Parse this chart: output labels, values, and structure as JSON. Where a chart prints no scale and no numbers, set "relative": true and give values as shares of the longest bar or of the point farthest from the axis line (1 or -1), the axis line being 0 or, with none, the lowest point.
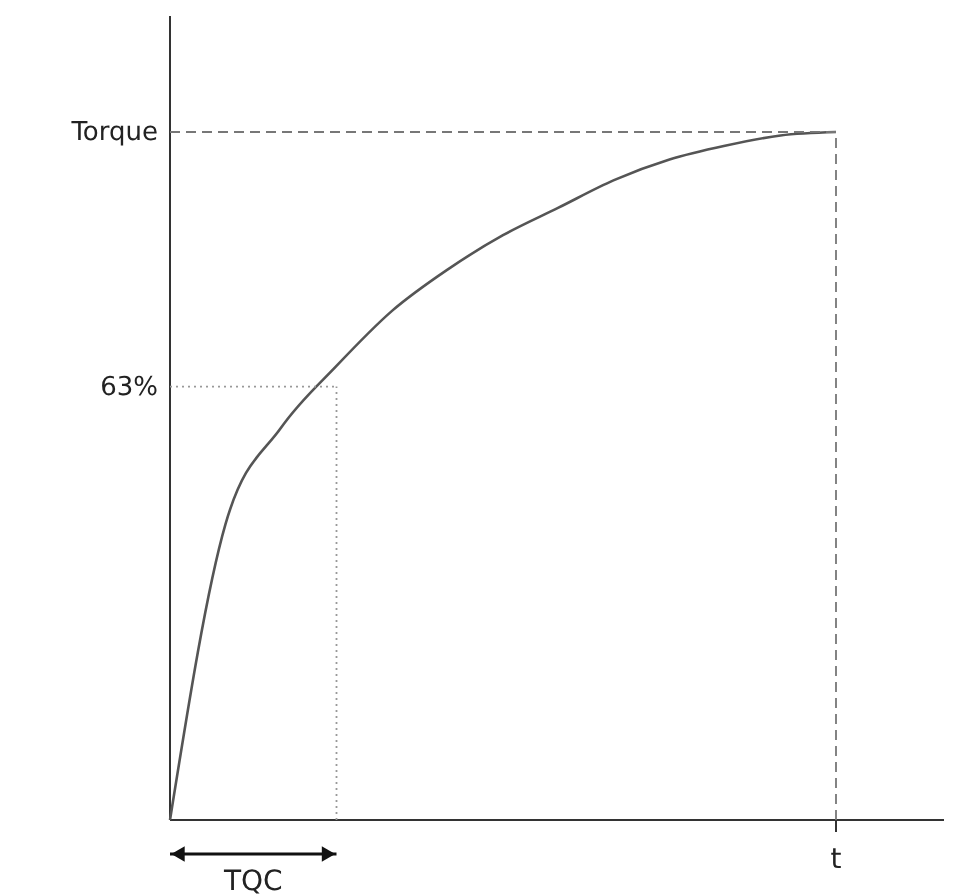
{
  "chart_data": {
    "type": "line",
    "relative": true,
    "categories": [
      null,
      null,
      null,
      null,
      null,
      null,
      null,
      null,
      null,
      null,
      null,
      null,
      null
    ],
    "xlabel": "t",
    "series": [
      {
        "color": "#555555",
        "values": [
          0,
          0.43,
          0.57,
          0.66,
          0.74,
          0.8,
          0.85,
          0.89,
          0.93,
          0.96,
          0.98,
          0.995,
          1
        ]
      }
    ],
    "ref_lines": [
      {
        "axis": "y",
        "value": 1,
        "label": "Torque",
        "line_style": "dashed",
        "color": "#777777"
      },
      {
        "axis": "y",
        "value": 0.63,
        "label": "63%",
        "line_style": "dotted",
        "color": "#999999"
      }
    ],
    "annotations": [
      "TQC"
    ]
  }
}
